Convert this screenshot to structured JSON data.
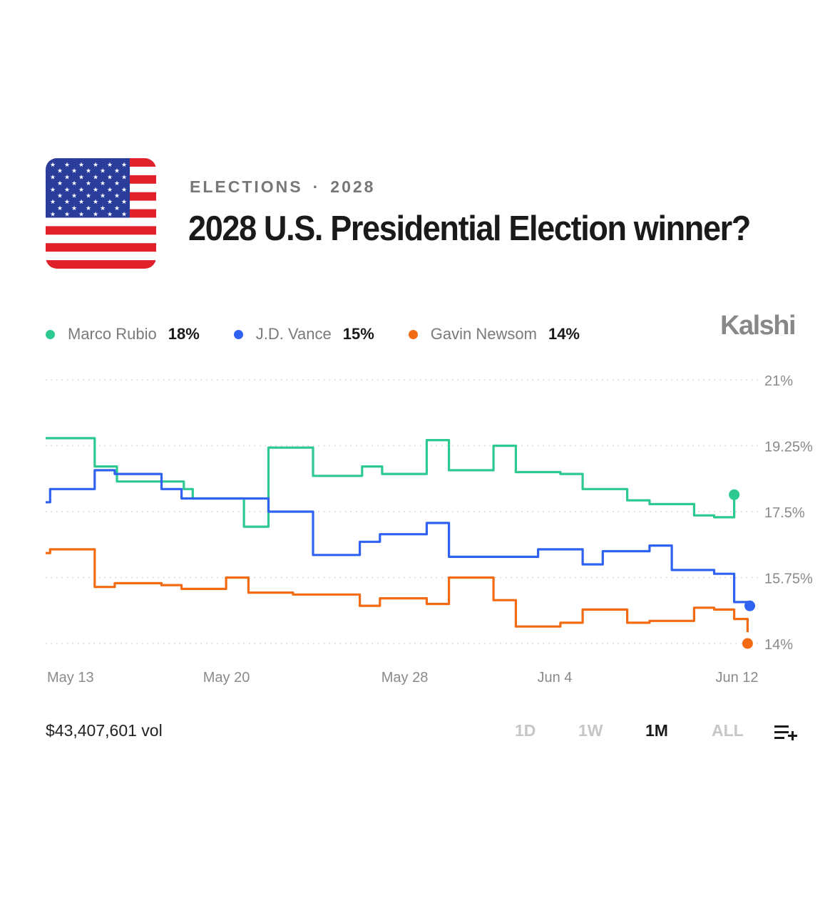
{
  "header": {
    "category": "ELECTIONS",
    "separator": "·",
    "year": "2028",
    "title": "2028 U.S. Presidential Election winner?",
    "flag_icon": "us-flag-icon"
  },
  "brand": "Kalshi",
  "colors": {
    "rubio": "#2ec990",
    "vance": "#2f62f0",
    "newsom": "#f26b12",
    "grid": "#cfcfcf"
  },
  "legend": [
    {
      "name": "Marco Rubio",
      "value": "18%",
      "color": "#2ec990"
    },
    {
      "name": "J.D. Vance",
      "value": "15%",
      "color": "#2f62f0"
    },
    {
      "name": "Gavin Newsom",
      "value": "14%",
      "color": "#f26b12"
    }
  ],
  "footer": {
    "volume": "$43,407,601 vol",
    "ranges": [
      {
        "label": "1D",
        "active": false
      },
      {
        "label": "1W",
        "active": false
      },
      {
        "label": "1M",
        "active": true
      },
      {
        "label": "ALL",
        "active": false
      }
    ],
    "add_icon": "add-to-list-icon"
  },
  "chart_data": {
    "type": "line",
    "y_ticks": [
      "21%",
      "19.25%",
      "17.5%",
      "15.75%",
      "14%"
    ],
    "y_tick_values": [
      21,
      19.25,
      17.5,
      15.75,
      14
    ],
    "ylim": [
      13.7,
      21.3
    ],
    "x_ticks": [
      "May 13",
      "May 20",
      "May 28",
      "Jun 4",
      "Jun 12"
    ],
    "x_tick_values": [
      1,
      8,
      16,
      23,
      31
    ],
    "xlim": [
      1,
      33
    ],
    "grid": true,
    "step": true,
    "series": [
      {
        "name": "Marco Rubio",
        "color": "#2ec990",
        "points": [
          [
            1,
            19.45
          ],
          [
            3.2,
            19.45
          ],
          [
            3.2,
            18.7
          ],
          [
            4.2,
            18.7
          ],
          [
            4.2,
            18.3
          ],
          [
            7.2,
            18.3
          ],
          [
            7.2,
            18.1
          ],
          [
            7.6,
            18.1
          ],
          [
            7.6,
            17.85
          ],
          [
            9.9,
            17.85
          ],
          [
            9.9,
            17.1
          ],
          [
            11,
            17.1
          ],
          [
            11,
            19.2
          ],
          [
            13,
            19.2
          ],
          [
            13,
            18.45
          ],
          [
            15.2,
            18.45
          ],
          [
            15.2,
            18.7
          ],
          [
            16.1,
            18.7
          ],
          [
            16.1,
            18.5
          ],
          [
            18.1,
            18.5
          ],
          [
            18.1,
            19.4
          ],
          [
            19.1,
            19.4
          ],
          [
            19.1,
            18.6
          ],
          [
            21.1,
            18.6
          ],
          [
            21.1,
            19.25
          ],
          [
            22.1,
            19.25
          ],
          [
            22.1,
            18.55
          ],
          [
            24.1,
            18.55
          ],
          [
            24.1,
            18.5
          ],
          [
            25.1,
            18.5
          ],
          [
            25.1,
            18.1
          ],
          [
            27.1,
            18.1
          ],
          [
            27.1,
            17.8
          ],
          [
            28.1,
            17.8
          ],
          [
            28.1,
            17.7
          ],
          [
            30.1,
            17.7
          ],
          [
            30.1,
            17.4
          ],
          [
            31,
            17.4
          ],
          [
            31,
            17.35
          ],
          [
            31.9,
            17.35
          ],
          [
            31.9,
            17.9
          ]
        ],
        "last": 17.95
      },
      {
        "name": "J.D. Vance",
        "color": "#2f62f0",
        "points": [
          [
            1,
            17.75
          ],
          [
            1.2,
            17.75
          ],
          [
            1.2,
            18.1
          ],
          [
            3.2,
            18.1
          ],
          [
            3.2,
            18.6
          ],
          [
            4.1,
            18.6
          ],
          [
            4.1,
            18.5
          ],
          [
            6.2,
            18.5
          ],
          [
            6.2,
            18.1
          ],
          [
            7.1,
            18.1
          ],
          [
            7.1,
            17.85
          ],
          [
            9.1,
            17.85
          ],
          [
            9.1,
            17.85
          ],
          [
            11,
            17.85
          ],
          [
            11,
            17.5
          ],
          [
            13,
            17.5
          ],
          [
            13,
            16.35
          ],
          [
            15.1,
            16.35
          ],
          [
            15.1,
            16.7
          ],
          [
            16,
            16.7
          ],
          [
            16,
            16.9
          ],
          [
            18.1,
            16.9
          ],
          [
            18.1,
            17.2
          ],
          [
            19.1,
            17.2
          ],
          [
            19.1,
            16.3
          ],
          [
            23.1,
            16.3
          ],
          [
            23.1,
            16.5
          ],
          [
            25.1,
            16.5
          ],
          [
            25.1,
            16.1
          ],
          [
            26,
            16.1
          ],
          [
            26,
            16.45
          ],
          [
            28.1,
            16.45
          ],
          [
            28.1,
            16.6
          ],
          [
            29.1,
            16.6
          ],
          [
            29.1,
            15.95
          ],
          [
            31,
            15.95
          ],
          [
            31,
            15.85
          ],
          [
            31.9,
            15.85
          ],
          [
            31.9,
            15.1
          ],
          [
            32.6,
            15.1
          ]
        ],
        "last": 15.0
      },
      {
        "name": "Gavin Newsom",
        "color": "#f26b12",
        "points": [
          [
            1,
            16.4
          ],
          [
            1.2,
            16.4
          ],
          [
            1.2,
            16.5
          ],
          [
            3.2,
            16.5
          ],
          [
            3.2,
            15.5
          ],
          [
            4.1,
            15.5
          ],
          [
            4.1,
            15.6
          ],
          [
            6.2,
            15.6
          ],
          [
            6.2,
            15.55
          ],
          [
            7.1,
            15.55
          ],
          [
            7.1,
            15.45
          ],
          [
            9.1,
            15.45
          ],
          [
            9.1,
            15.75
          ],
          [
            10.1,
            15.75
          ],
          [
            10.1,
            15.35
          ],
          [
            12.1,
            15.35
          ],
          [
            12.1,
            15.3
          ],
          [
            15.1,
            15.3
          ],
          [
            15.1,
            15.0
          ],
          [
            16,
            15.0
          ],
          [
            16,
            15.2
          ],
          [
            18.1,
            15.2
          ],
          [
            18.1,
            15.05
          ],
          [
            19.1,
            15.05
          ],
          [
            19.1,
            15.75
          ],
          [
            21.1,
            15.75
          ],
          [
            21.1,
            15.15
          ],
          [
            22.1,
            15.15
          ],
          [
            22.1,
            14.45
          ],
          [
            24.1,
            14.45
          ],
          [
            24.1,
            14.55
          ],
          [
            25.1,
            14.55
          ],
          [
            25.1,
            14.9
          ],
          [
            27.1,
            14.9
          ],
          [
            27.1,
            14.55
          ],
          [
            28.1,
            14.55
          ],
          [
            28.1,
            14.6
          ],
          [
            30.1,
            14.6
          ],
          [
            30.1,
            14.95
          ],
          [
            31,
            14.95
          ],
          [
            31,
            14.9
          ],
          [
            31.9,
            14.9
          ],
          [
            31.9,
            14.65
          ],
          [
            32.5,
            14.65
          ],
          [
            32.5,
            14.3
          ]
        ],
        "last": 14.0
      }
    ]
  }
}
